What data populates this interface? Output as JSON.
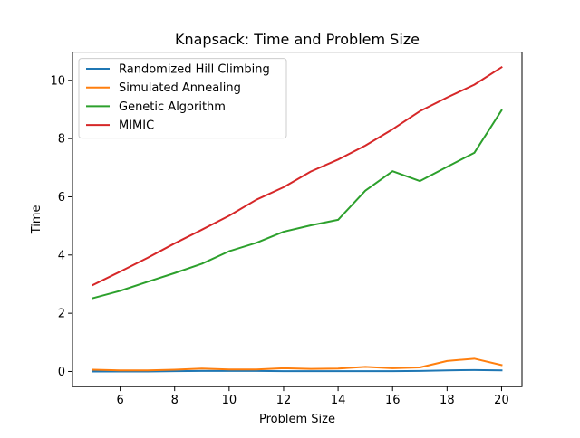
{
  "chart_data": {
    "type": "line",
    "title": "Knapsack: Time and Problem Size",
    "xlabel": "Problem Size",
    "ylabel": "Time",
    "x": [
      5,
      6,
      7,
      8,
      9,
      10,
      11,
      12,
      13,
      14,
      15,
      16,
      17,
      18,
      19,
      20
    ],
    "xlim": [
      4.25,
      20.75
    ],
    "ylim": [
      -0.52,
      10.97
    ],
    "xticks": [
      6,
      8,
      10,
      12,
      14,
      16,
      18,
      20
    ],
    "yticks": [
      0,
      2,
      4,
      6,
      8,
      10
    ],
    "grid": false,
    "legend_position": "top-left",
    "series": [
      {
        "name": "Randomized Hill Climbing",
        "color": "#1f77b4",
        "values": [
          0.0,
          0.0,
          0.0,
          0.01,
          0.02,
          0.02,
          0.02,
          0.01,
          0.01,
          0.01,
          0.01,
          0.01,
          0.02,
          0.04,
          0.05,
          0.04
        ]
      },
      {
        "name": "Simulated Annealing",
        "color": "#ff7f0e",
        "values": [
          0.06,
          0.04,
          0.04,
          0.06,
          0.1,
          0.07,
          0.07,
          0.11,
          0.09,
          0.1,
          0.16,
          0.11,
          0.14,
          0.36,
          0.44,
          0.22
        ]
      },
      {
        "name": "Genetic Algorithm",
        "color": "#2ca02c",
        "values": [
          2.52,
          2.77,
          3.08,
          3.38,
          3.7,
          4.13,
          4.42,
          4.8,
          5.02,
          5.21,
          6.21,
          6.88,
          6.54,
          7.03,
          7.51,
          8.97
        ]
      },
      {
        "name": "MIMIC",
        "color": "#d62728",
        "values": [
          2.97,
          3.43,
          3.9,
          4.4,
          4.87,
          5.35,
          5.9,
          6.33,
          6.87,
          7.28,
          7.76,
          8.32,
          8.94,
          9.41,
          9.85,
          10.45
        ]
      }
    ]
  }
}
